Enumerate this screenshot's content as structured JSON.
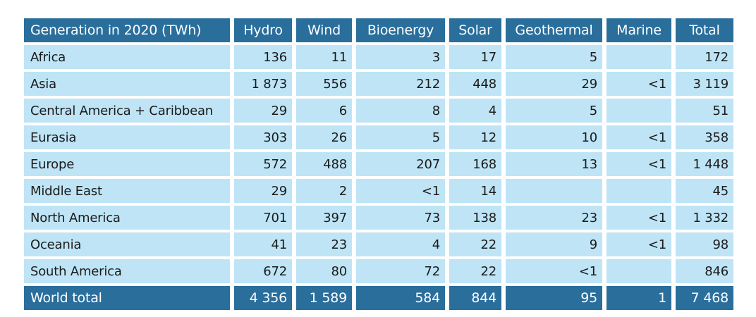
{
  "table": {
    "header": [
      "Generation in 2020 (TWh)",
      "Hydro",
      "Wind",
      "Bioenergy",
      "Solar",
      "Geothermal",
      "Marine",
      "Total"
    ],
    "rows": [
      [
        "Africa",
        "136",
        "11",
        "3",
        "17",
        "5",
        "",
        "172"
      ],
      [
        "Asia",
        "1 873",
        "556",
        "212",
        "448",
        "29",
        "<1",
        "3 119"
      ],
      [
        "Central America + Caribbean",
        "29",
        "6",
        "8",
        "4",
        "5",
        "",
        "51"
      ],
      [
        "Eurasia",
        "303",
        "26",
        "5",
        "12",
        "10",
        "<1",
        "358"
      ],
      [
        "Europe",
        "572",
        "488",
        "207",
        "168",
        "13",
        "<1",
        "1 448"
      ],
      [
        "Middle East",
        "29",
        "2",
        "<1",
        "14",
        "",
        "",
        "45"
      ],
      [
        "North America",
        "701",
        "397",
        "73",
        "138",
        "23",
        "<1",
        "1 332"
      ],
      [
        "Oceania",
        "41",
        "23",
        "4",
        "22",
        "9",
        "<1",
        "98"
      ],
      [
        "South America",
        "672",
        "80",
        "72",
        "22",
        "<1",
        "",
        "846"
      ]
    ],
    "total": [
      "World total",
      "4 356",
      "1 589",
      "584",
      "844",
      "95",
      "1",
      "7 468"
    ]
  },
  "colors": {
    "header_bg": "#2a6e9c",
    "row_bg": "#bee4f6",
    "header_text": "#ffffff"
  }
}
